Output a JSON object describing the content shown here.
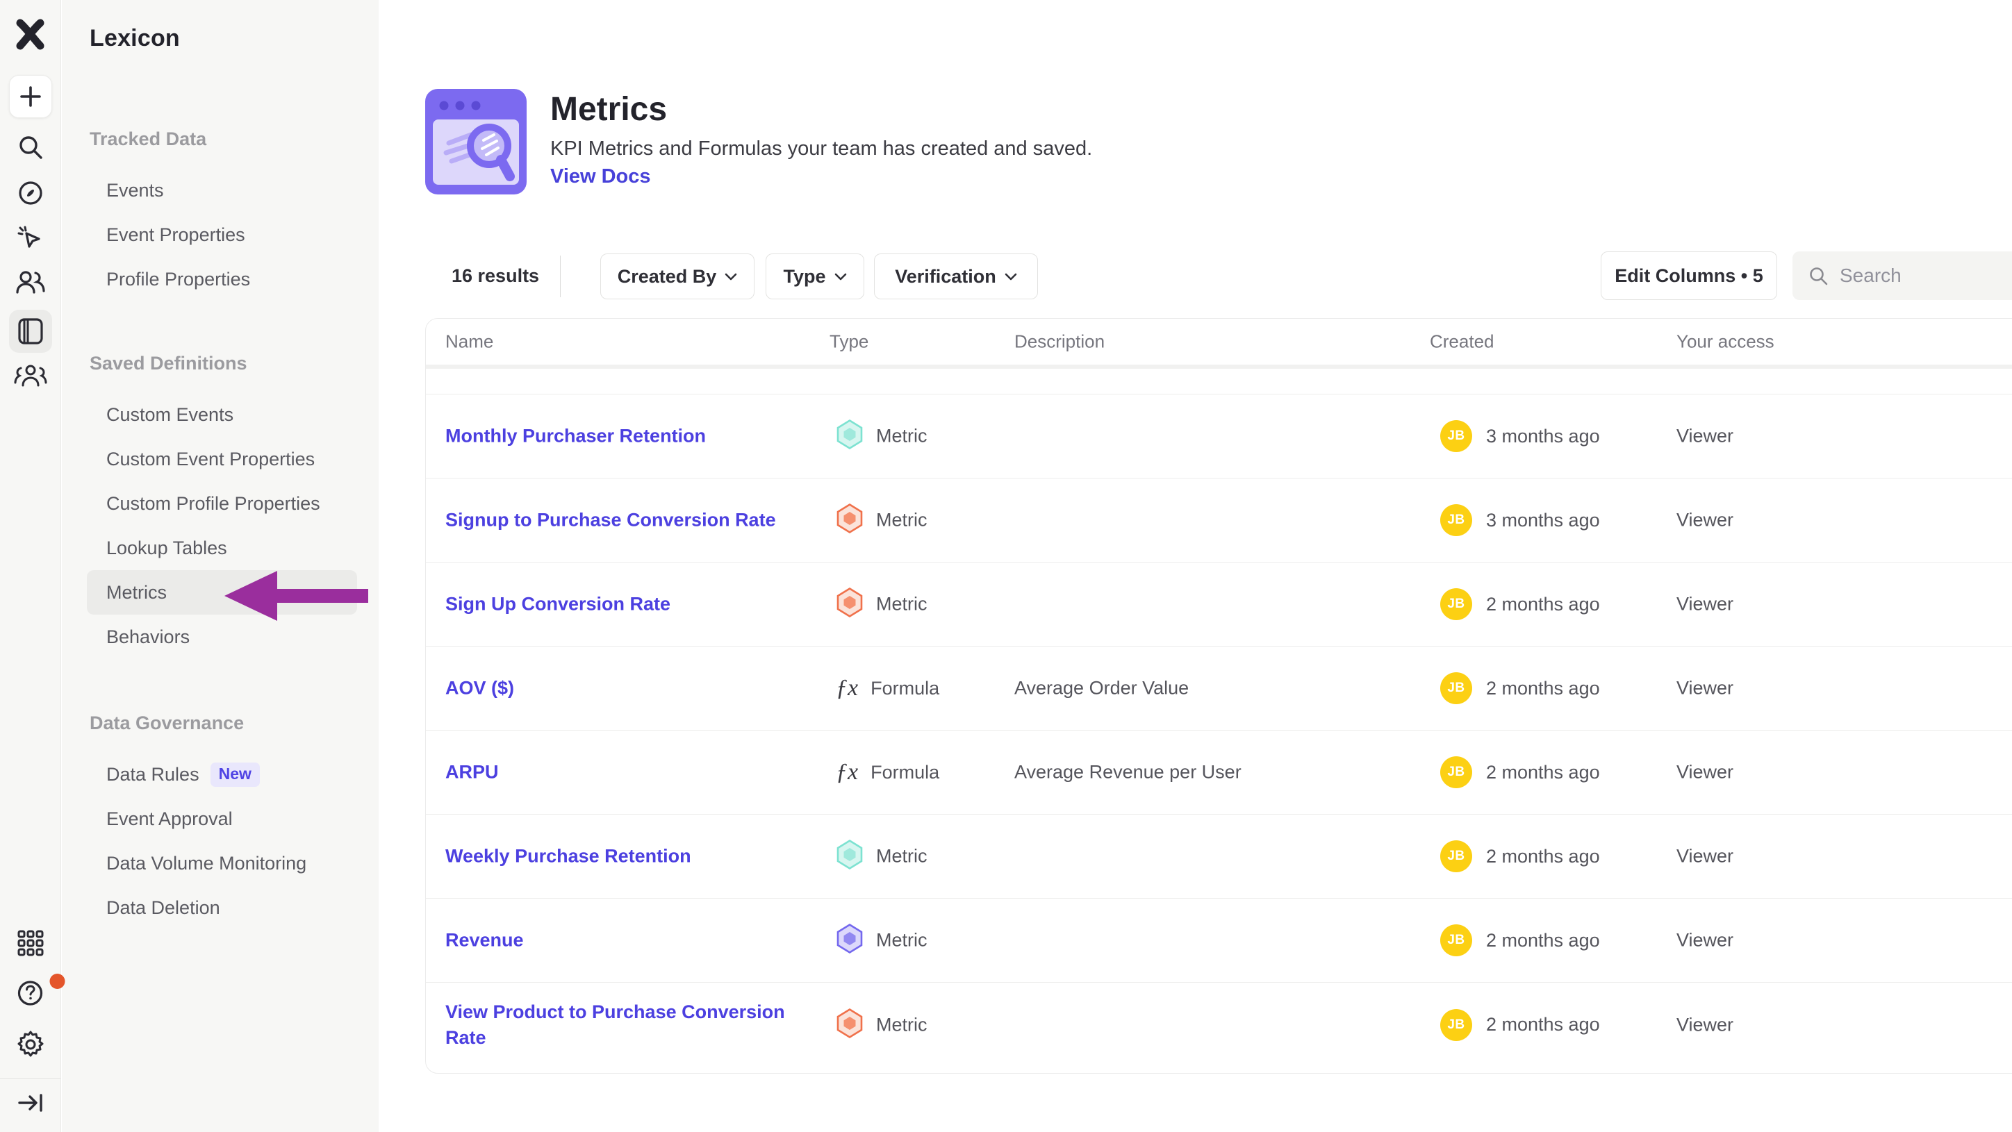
{
  "app": {
    "name": "Lexicon"
  },
  "rail": {
    "icons": [
      "mixpanel-logo",
      "create",
      "search",
      "explore",
      "events",
      "users",
      "lexicon",
      "community",
      "apps-grid",
      "help",
      "settings",
      "collapse-sidebar"
    ],
    "active_icon": "lexicon",
    "help_notification": true
  },
  "sidebar": {
    "title": "Lexicon",
    "sections": [
      {
        "title": "Tracked Data",
        "items": [
          {
            "label": "Events"
          },
          {
            "label": "Event Properties"
          },
          {
            "label": "Profile Properties"
          }
        ]
      },
      {
        "title": "Saved Definitions",
        "items": [
          {
            "label": "Custom Events"
          },
          {
            "label": "Custom Event Properties"
          },
          {
            "label": "Custom Profile Properties"
          },
          {
            "label": "Lookup Tables"
          },
          {
            "label": "Metrics",
            "active": true
          },
          {
            "label": "Behaviors"
          }
        ]
      },
      {
        "title": "Data Governance",
        "items": [
          {
            "label": "Data Rules",
            "badge": "New"
          },
          {
            "label": "Event Approval"
          },
          {
            "label": "Data Volume Monitoring"
          },
          {
            "label": "Data Deletion"
          }
        ]
      }
    ]
  },
  "annotation": {
    "arrow_target": "Metrics",
    "arrow_color": "#9A2E9D"
  },
  "header": {
    "title": "Metrics",
    "subtitle": "KPI Metrics and Formulas your team has created and saved.",
    "link": "View Docs"
  },
  "toolbar": {
    "results": "16 results",
    "filters": [
      {
        "label": "Created By"
      },
      {
        "label": "Type"
      },
      {
        "label": "Verification"
      }
    ],
    "edit_columns": "Edit Columns • 5",
    "search_placeholder": "Search"
  },
  "table": {
    "columns": [
      "Name",
      "Type",
      "Description",
      "Created",
      "Your access"
    ],
    "rows": [
      {
        "name": "Monthly Purchaser Retention",
        "type": "Metric",
        "type_style": "teal",
        "description": "",
        "created": "3 months ago",
        "avatar": "JB",
        "access": "Viewer"
      },
      {
        "name": "Signup to Purchase Conversion Rate",
        "type": "Metric",
        "type_style": "orange",
        "description": "",
        "created": "3 months ago",
        "avatar": "JB",
        "access": "Viewer"
      },
      {
        "name": "Sign Up Conversion Rate",
        "type": "Metric",
        "type_style": "orange",
        "description": "",
        "created": "2 months ago",
        "avatar": "JB",
        "access": "Viewer"
      },
      {
        "name": "AOV ($)",
        "type": "Formula",
        "type_style": "formula",
        "description": "Average Order Value",
        "created": "2 months ago",
        "avatar": "JB",
        "access": "Viewer"
      },
      {
        "name": "ARPU",
        "type": "Formula",
        "type_style": "formula",
        "description": "Average Revenue per User",
        "created": "2 months ago",
        "avatar": "JB",
        "access": "Viewer"
      },
      {
        "name": "Weekly Purchase Retention",
        "type": "Metric",
        "type_style": "teal",
        "description": "",
        "created": "2 months ago",
        "avatar": "JB",
        "access": "Viewer"
      },
      {
        "name": "Revenue",
        "type": "Metric",
        "type_style": "purple",
        "description": "",
        "created": "2 months ago",
        "avatar": "JB",
        "access": "Viewer"
      },
      {
        "name": "View Product to Purchase Conversion Rate",
        "type": "Metric",
        "type_style": "orange",
        "description": "",
        "created": "2 months ago",
        "avatar": "JB",
        "access": "Viewer"
      }
    ]
  },
  "colors": {
    "accent_link": "#4C40E0",
    "view_docs_link": "#4741d9",
    "arrow": "#9A2E9D",
    "avatar_bg": "#FCD013",
    "metric_teal": "#7DE2D1",
    "metric_orange": "#F0714B",
    "metric_purple": "#7468EE",
    "notification_dot": "#E4552A",
    "sidebar_bg": "#F7F7F5",
    "active_item_bg": "#EBEBE9"
  }
}
